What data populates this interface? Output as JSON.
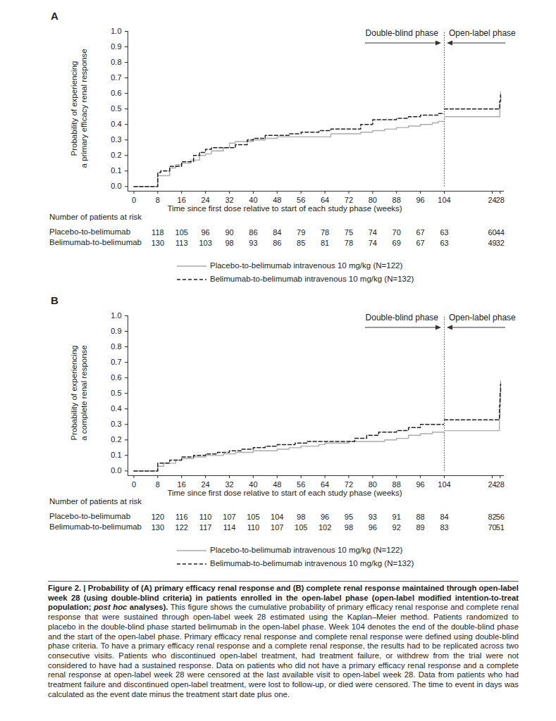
{
  "chart_data": [
    {
      "type": "line",
      "title": "A",
      "ylabel": "Probability of experiencing\na primary efficacy renal response",
      "xlabel": "Time since first dose relative to start of each study phase (weeks)",
      "ylim": [
        -0.03,
        1
      ],
      "yticks": [
        {
          "value": 0,
          "label": "0.0"
        },
        0.1,
        0.2,
        0.3,
        0.4,
        0.5,
        0.6,
        0.7,
        0.8,
        0.9,
        {
          "value": 1,
          "label": "1.0"
        }
      ],
      "grid": false,
      "at_risk_title": "Number of patients at risk",
      "phases": [
        {
          "name": "Double-blind phase",
          "xlim": [
            -2,
            104
          ],
          "xticks": [
            0,
            8,
            16,
            24,
            32,
            40,
            48,
            56,
            64,
            72,
            80,
            88,
            96,
            104
          ],
          "at_risk_x": [
            8,
            16,
            24,
            32,
            40,
            48,
            56,
            64,
            72,
            80,
            88,
            96,
            104
          ]
        },
        {
          "name": "Open-label phase",
          "xlim": [
            0,
            30
          ],
          "xticks": [
            24,
            28
          ],
          "at_risk_x": [
            24,
            28
          ]
        }
      ],
      "series": [
        {
          "name": "Placebo-to-belimumab intravenous 10 mg/kg (N=122)",
          "color": "#aaaaaa",
          "line_style": "solid",
          "at_risk_label": "Placebo-to-belimumab",
          "at_risk": [
            [
              118,
              105,
              96,
              90,
              86,
              84,
              79,
              78,
              75,
              74,
              70,
              67,
              63
            ],
            [
              60,
              44
            ]
          ],
          "phases": [
            {
              "x": [
                0,
                8,
                12,
                14,
                16,
                19,
                22,
                24,
                26,
                30,
                32,
                34,
                40,
                44,
                48,
                66,
                76,
                80,
                84,
                88,
                92,
                96,
                100,
                102,
                104
              ],
              "values": [
                0,
                0.07,
                0.12,
                0.14,
                0.15,
                0.17,
                0.2,
                0.21,
                0.23,
                0.25,
                0.28,
                0.29,
                0.3,
                0.31,
                0.32,
                0.34,
                0.35,
                0.36,
                0.37,
                0.38,
                0.39,
                0.4,
                0.41,
                0.42,
                0.42
              ]
            },
            {
              "x": [
                0,
                27.8,
                28.2
              ],
              "values": [
                0.45,
                0.55,
                0.61
              ]
            }
          ]
        },
        {
          "name": "Belimumab-to-belimumab intravenous 10 mg/kg (N=132)",
          "color": "#222222",
          "line_style": "dashed",
          "at_risk_label": "Belimumab-to-belimumab",
          "at_risk": [
            [
              130,
              113,
              103,
              98,
              93,
              86,
              85,
              81,
              78,
              74,
              69,
              67,
              63
            ],
            [
              49,
              32
            ]
          ],
          "phases": [
            {
              "x": [
                0,
                8,
                9,
                12,
                16,
                20,
                22,
                24,
                26,
                34,
                38,
                40,
                44,
                52,
                56,
                62,
                66,
                76,
                80,
                88,
                92,
                96,
                102,
                104
              ],
              "values": [
                0,
                0.09,
                0.1,
                0.13,
                0.16,
                0.2,
                0.22,
                0.24,
                0.25,
                0.27,
                0.3,
                0.31,
                0.33,
                0.34,
                0.35,
                0.36,
                0.37,
                0.4,
                0.43,
                0.44,
                0.45,
                0.46,
                0.47,
                0.47
              ]
            },
            {
              "x": [
                0,
                27.8,
                28.2
              ],
              "values": [
                0.5,
                0.55,
                0.59
              ]
            }
          ]
        }
      ]
    },
    {
      "type": "line",
      "title": "B",
      "ylabel": "Probability of experiencing\na complete renal response",
      "xlabel": "Time since first dose relative to start of each study phase (weeks)",
      "ylim": [
        -0.03,
        1
      ],
      "yticks": [
        {
          "value": 0,
          "label": "0.0"
        },
        0.1,
        0.2,
        0.3,
        0.4,
        0.5,
        0.6,
        0.7,
        0.8,
        0.9,
        {
          "value": 1,
          "label": "1.0"
        }
      ],
      "grid": false,
      "at_risk_title": "Number of patients at risk",
      "phases": [
        {
          "name": "Double-blind phase",
          "xlim": [
            -2,
            104
          ],
          "xticks": [
            0,
            8,
            16,
            24,
            32,
            40,
            48,
            56,
            64,
            72,
            80,
            88,
            96,
            104
          ],
          "at_risk_x": [
            8,
            16,
            24,
            32,
            40,
            48,
            56,
            64,
            72,
            80,
            88,
            96,
            104
          ]
        },
        {
          "name": "Open-label phase",
          "xlim": [
            0,
            30
          ],
          "xticks": [
            24,
            28
          ],
          "at_risk_x": [
            24,
            28
          ]
        }
      ],
      "series": [
        {
          "name": "Placebo-to-belimumab intravenous 10 mg/kg (N=122)",
          "color": "#aaaaaa",
          "line_style": "solid",
          "at_risk_label": "Placebo-to-belimumab",
          "at_risk": [
            [
              120,
              116,
              110,
              107,
              105,
              104,
              98,
              96,
              95,
              93,
              91,
              88,
              84
            ],
            [
              82,
              56
            ]
          ],
          "phases": [
            {
              "x": [
                0,
                8,
                10,
                14,
                16,
                20,
                24,
                30,
                34,
                40,
                48,
                52,
                56,
                62,
                64,
                72,
                84,
                88,
                92,
                96,
                100,
                104
              ],
              "values": [
                0,
                0.03,
                0.05,
                0.07,
                0.08,
                0.09,
                0.1,
                0.11,
                0.12,
                0.13,
                0.14,
                0.15,
                0.16,
                0.17,
                0.18,
                0.19,
                0.2,
                0.21,
                0.23,
                0.24,
                0.25,
                0.26
              ]
            },
            {
              "x": [
                0,
                27.6,
                27.9,
                28.2
              ],
              "values": [
                0.26,
                0.35,
                0.45,
                0.58
              ]
            }
          ]
        },
        {
          "name": "Belimumab-to-belimumab intravenous 10 mg/kg (N=132)",
          "color": "#222222",
          "line_style": "dashed",
          "at_risk_label": "Belimumab-to-belimumab",
          "at_risk": [
            [
              130,
              122,
              117,
              114,
              110,
              107,
              105,
              102,
              98,
              96,
              92,
              89,
              83
            ],
            [
              70,
              51
            ]
          ],
          "phases": [
            {
              "x": [
                0,
                8,
                12,
                16,
                20,
                24,
                28,
                32,
                36,
                40,
                44,
                48,
                54,
                58,
                74,
                78,
                82,
                88,
                92,
                96,
                104
              ],
              "values": [
                0,
                0.05,
                0.07,
                0.09,
                0.1,
                0.11,
                0.12,
                0.13,
                0.14,
                0.15,
                0.16,
                0.17,
                0.18,
                0.19,
                0.21,
                0.23,
                0.25,
                0.26,
                0.28,
                0.3,
                0.3
              ]
            },
            {
              "x": [
                0,
                27.6,
                27.9,
                28.2
              ],
              "values": [
                0.33,
                0.42,
                0.5,
                0.56
              ]
            }
          ]
        }
      ]
    }
  ],
  "caption": {
    "title": "Figure 2. | Probability of (A) primary efficacy renal response and (B) complete renal response maintained through open-label week 28 (using double-blind criteria) in patients enrolled in the open-label phase (open-label modified intention-to-treat population; ",
    "title_italic": "post hoc",
    "title_end": " analyses).",
    "text": "This figure shows the cumulative probability of primary efficacy renal response and complete renal response that were sustained through open-label week 28 estimated using the Kaplan–Meier method. Patients randomized to placebo in the double-blind phase started belimumab in the open-label phase. Week 104 denotes the end of the double-blind phase and the start of the open-label phase. Primary efficacy renal response and complete renal response were defined using double-blind phase criteria. To have a primary efficacy renal response and a complete renal response, the results had to be replicated across two consecutive visits. Patients who discontinued open-label treatment, had treatment failure, or withdrew from the trial were not considered to have had a sustained response. Data on patients who did not have a primary efficacy renal response and a complete renal response at open-label week 28 were censored at the last available visit to open-label week 28. Data from patients who had treatment failure and discontinued open-label treatment, were lost to follow-up, or died were censored. The time to event in days was calculated as the event date minus the treatment start date plus one."
  }
}
